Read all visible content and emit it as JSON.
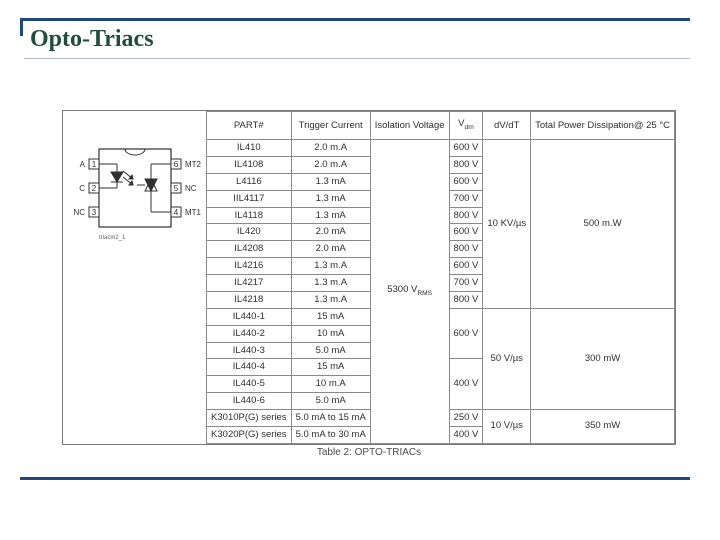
{
  "title": "Opto-Triacs",
  "caption": "Table 2: OPTO-TRIACs",
  "columns": {
    "part": "PART#",
    "trigger": "Trigger Current",
    "isolation": "Isolation Voltage",
    "vdm_html": "V<sub>dm</sub>",
    "dvdt": "dV/dT",
    "power": "Total Power Dissipation@ 25 °C"
  },
  "iso_value_html": "5300 V<sub>RMS</sub>",
  "diagram": {
    "pins_left": [
      {
        "n": "1",
        "lbl": "A"
      },
      {
        "n": "2",
        "lbl": "C"
      },
      {
        "n": "3",
        "lbl": "NC"
      }
    ],
    "pins_right": [
      {
        "n": "6",
        "lbl": "MT2"
      },
      {
        "n": "5",
        "lbl": "NC"
      },
      {
        "n": "4",
        "lbl": "MT1"
      }
    ],
    "footnote": "triacm2_1"
  },
  "rows": [
    {
      "part": "IL410",
      "trig": "2.0 m.A",
      "vdm": "600 V"
    },
    {
      "part": "IL4108",
      "trig": "2.0 m.A",
      "vdm": "800 V"
    },
    {
      "part": "L4116",
      "trig": "1.3 mA",
      "vdm": "600 V"
    },
    {
      "part": "IIL4117",
      "trig": "1.3 mA",
      "vdm": "700 V"
    },
    {
      "part": "IL4118",
      "trig": "1.3 mA",
      "vdm": "800 V"
    },
    {
      "part": "IL420",
      "trig": "2.0 mA",
      "vdm": "600 V"
    },
    {
      "part": "IL4208",
      "trig": "2.0 mA",
      "vdm": "800 V"
    },
    {
      "part": "IL4216",
      "trig": "1.3 m.A",
      "vdm": "600 V"
    },
    {
      "part": "IL4217",
      "trig": "1.3 m.A",
      "vdm": "700 V"
    },
    {
      "part": "IL4218",
      "trig": "1.3 m.A",
      "vdm": "800 V"
    }
  ],
  "group1_dvdt": "10 KV/µs",
  "group1_pwr": "500 m.W",
  "il440_rows": [
    {
      "part": "IL440-1",
      "trig": "15 mA"
    },
    {
      "part": "IL440-2",
      "trig": "10 mA"
    },
    {
      "part": "IL440-3",
      "trig": "5.0 mA"
    },
    {
      "part": "IL440-4",
      "trig": "15 mA"
    },
    {
      "part": "IL440-5",
      "trig": "10 m.A"
    },
    {
      "part": "IL440-6",
      "trig": "5.0 mA"
    }
  ],
  "il440_vdm_top": "600 V",
  "il440_vdm_bot": "400 V",
  "il440_dvdt": "50 V/µs",
  "il440_pwr": "300 mW",
  "k_rows": [
    {
      "part": "K3010P(G) series",
      "trig": "5.0 mA to 15 mA",
      "vdm": "250 V"
    },
    {
      "part": "K3020P(G) series",
      "trig": "5.0 mA to 30 mA",
      "vdm": "400 V"
    }
  ],
  "k_dvdt": "10 V/µs",
  "k_pwr": "350 mW",
  "colors": {
    "rule": "#1f497d",
    "title": "#1f4f3a",
    "border": "#8a8a8a"
  }
}
